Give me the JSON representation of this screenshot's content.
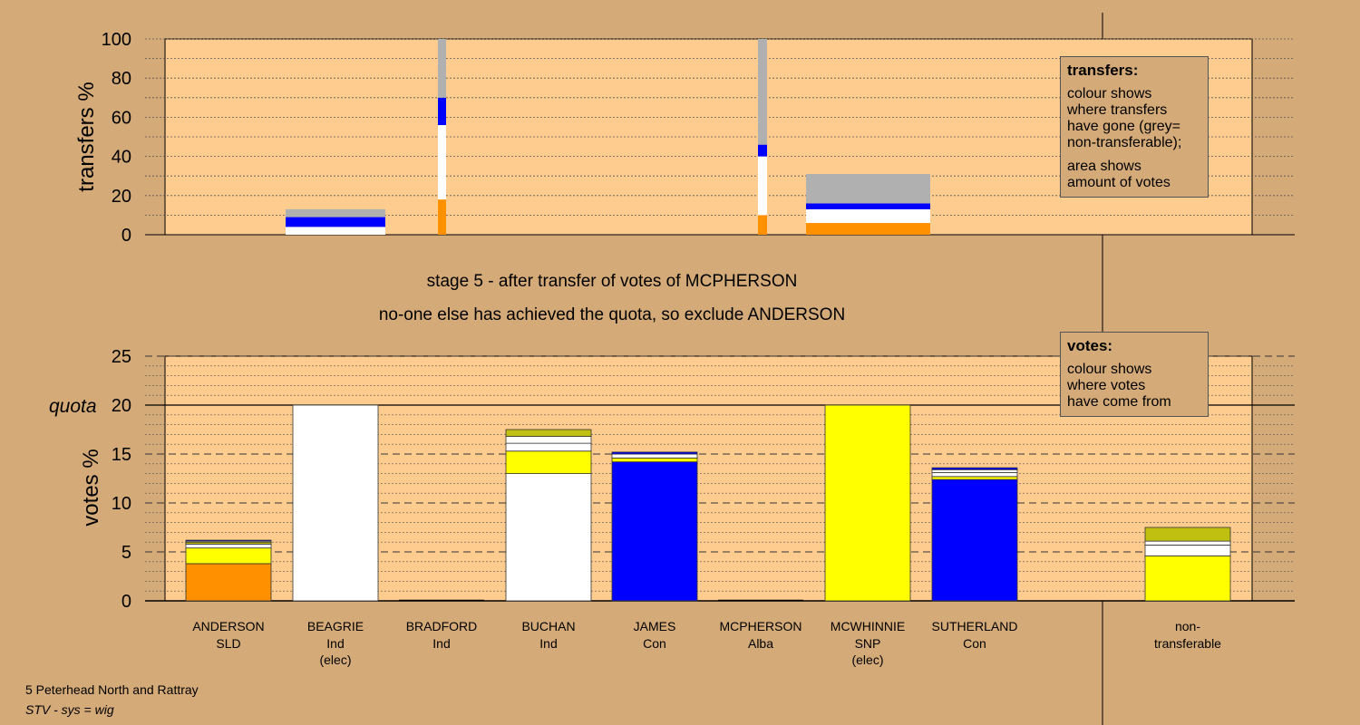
{
  "stage_line1": "stage 5 - after transfer of votes of MCPHERSON",
  "stage_line2": "no-one else has achieved the quota, so exclude ANDERSON",
  "footer_line1": "5 Peterhead North and Rattray",
  "footer_line2": "STV - sys = wig",
  "legend_transfers": {
    "title": "transfers:",
    "lines": [
      "colour shows",
      "where transfers",
      "have gone (grey=",
      "non-transferable);"
    ],
    "lines2": [
      "area shows",
      "amount of votes"
    ]
  },
  "legend_votes": {
    "title": "votes:",
    "lines": [
      "colour shows",
      "where votes",
      "have come from"
    ]
  },
  "colors": {
    "background": "#d4aa78",
    "plot_bg": "#ffcc90",
    "SLD": "#ff9000",
    "Ind": "#ffffff",
    "Con": "#0000ff",
    "SNP": "#ffff00",
    "SNP_dark": "#c0c010",
    "nontransferable": "#b0b0b0"
  },
  "chart_data": [
    {
      "type": "bar",
      "title": "",
      "ylabel": "transfers %",
      "ylim": [
        0,
        100
      ],
      "yticks": [
        "0",
        "20",
        "40",
        "60",
        "80",
        "100"
      ],
      "bars": [
        {
          "candidate": "BEAGRIE",
          "width_votes": 20,
          "segments": [
            {
              "color": "#ffffff",
              "value": 4
            },
            {
              "color": "#0000ff",
              "value": 5
            },
            {
              "color": "#b0b0b0",
              "value": 4
            }
          ]
        },
        {
          "candidate": "BRADFORD",
          "width_votes": 1,
          "segments": [
            {
              "color": "#ff9000",
              "value": 18
            },
            {
              "color": "#ffffff",
              "value": 38
            },
            {
              "color": "#0000ff",
              "value": 14
            },
            {
              "color": "#b0b0b0",
              "value": 30
            }
          ]
        },
        {
          "candidate": "MCPHERSON",
          "width_votes": 1,
          "segments": [
            {
              "color": "#ff9000",
              "value": 10
            },
            {
              "color": "#ffffff",
              "value": 30
            },
            {
              "color": "#0000ff",
              "value": 6
            },
            {
              "color": "#b0b0b0",
              "value": 54
            }
          ]
        },
        {
          "candidate": "MCWHINNIE",
          "width_votes": 20,
          "segments": [
            {
              "color": "#ff9000",
              "value": 6
            },
            {
              "color": "#ffffff",
              "value": 7
            },
            {
              "color": "#0000ff",
              "value": 3
            },
            {
              "color": "#b0b0b0",
              "value": 15
            }
          ]
        }
      ]
    },
    {
      "type": "bar",
      "title": "",
      "ylabel": "votes %",
      "ylim": [
        0,
        25
      ],
      "quota": 20,
      "quota_label": "quota",
      "yticks": [
        "0",
        "5",
        "10",
        "15",
        "20",
        "25"
      ],
      "categories": [
        {
          "name": "ANDERSON",
          "party": "SLD",
          "note": ""
        },
        {
          "name": "BEAGRIE",
          "party": "Ind",
          "note": "(elec)"
        },
        {
          "name": "BRADFORD",
          "party": "Ind",
          "note": ""
        },
        {
          "name": "BUCHAN",
          "party": "Ind",
          "note": ""
        },
        {
          "name": "JAMES",
          "party": "Con",
          "note": ""
        },
        {
          "name": "MCPHERSON",
          "party": "Alba",
          "note": ""
        },
        {
          "name": "MCWHINNIE",
          "party": "SNP",
          "note": "(elec)"
        },
        {
          "name": "SUTHERLAND",
          "party": "Con",
          "note": ""
        },
        {
          "name": "non-",
          "party": "transferable",
          "note": ""
        }
      ],
      "stacks": [
        [
          {
            "color": "#ff9000",
            "value": 3.8
          },
          {
            "color": "#ffff00",
            "value": 1.6
          },
          {
            "color": "#ffffff",
            "value": 0.4
          },
          {
            "color": "#c0c010",
            "value": 0.2
          },
          {
            "color": "#ffffff",
            "value": 0.1
          },
          {
            "color": "#0000ff",
            "value": 0.1
          }
        ],
        [
          {
            "color": "#ffffff",
            "value": 20.0
          }
        ],
        [],
        [
          {
            "color": "#ffffff",
            "value": 13.0
          },
          {
            "color": "#ffff00",
            "value": 2.3
          },
          {
            "color": "#ffffff",
            "value": 0.8
          },
          {
            "color": "#ffffff",
            "value": 0.7
          },
          {
            "color": "#c0c010",
            "value": 0.7
          }
        ],
        [
          {
            "color": "#0000ff",
            "value": 14.2
          },
          {
            "color": "#ffff00",
            "value": 0.4
          },
          {
            "color": "#ffffff",
            "value": 0.4
          },
          {
            "color": "#0000ff",
            "value": 0.2
          }
        ],
        [],
        [
          {
            "color": "#ffff00",
            "value": 20.0
          }
        ],
        [
          {
            "color": "#0000ff",
            "value": 12.4
          },
          {
            "color": "#ffff00",
            "value": 0.3
          },
          {
            "color": "#ffffff",
            "value": 0.4
          },
          {
            "color": "#ffffff",
            "value": 0.3
          },
          {
            "color": "#0000ff",
            "value": 0.2
          }
        ],
        [
          {
            "color": "#ffff00",
            "value": 4.6
          },
          {
            "color": "#ffffff",
            "value": 1.1
          },
          {
            "color": "#ffffff",
            "value": 0.4
          },
          {
            "color": "#c0c010",
            "value": 1.4
          }
        ]
      ]
    }
  ]
}
